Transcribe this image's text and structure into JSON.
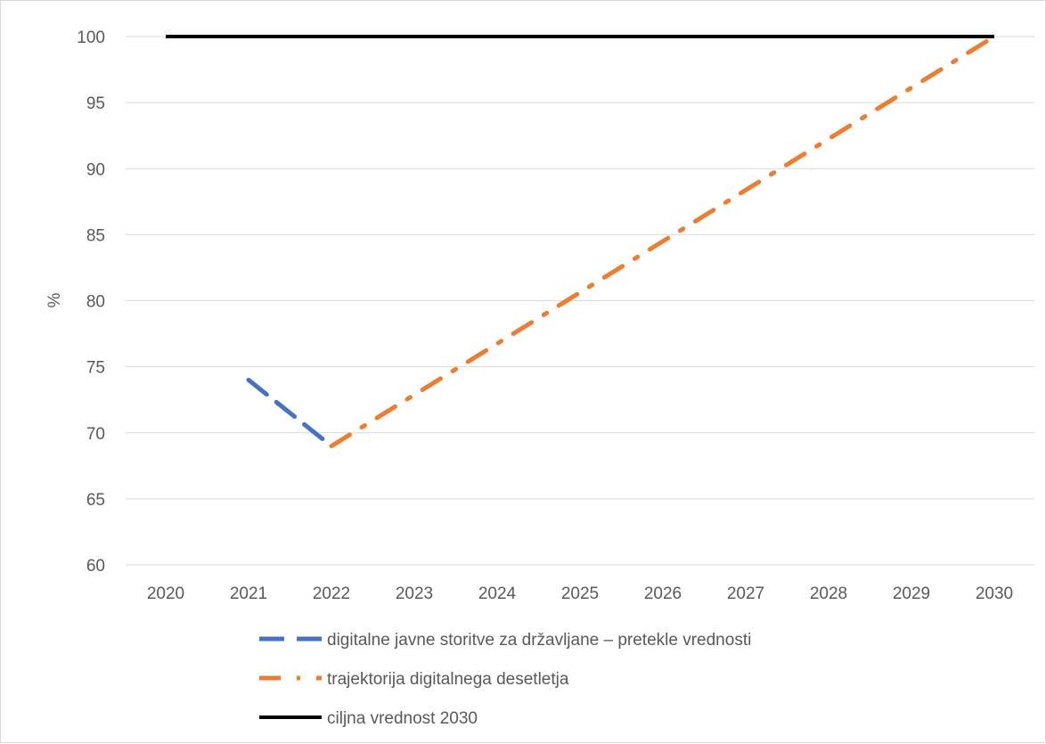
{
  "chart_data": {
    "type": "line",
    "title": "",
    "xlabel": "",
    "ylabel": "%",
    "ylim": [
      60,
      100
    ],
    "yticks": [
      "60",
      "65",
      "70",
      "75",
      "80",
      "85",
      "90",
      "95",
      "100"
    ],
    "ytick_values": [
      60,
      65,
      70,
      75,
      80,
      85,
      90,
      95,
      100
    ],
    "categories": [
      "2020",
      "2021",
      "2022",
      "2023",
      "2024",
      "2025",
      "2026",
      "2027",
      "2028",
      "2029",
      "2030"
    ],
    "grid": true,
    "legend_position": "bottom",
    "series": [
      {
        "name": "digitalne javne storitve za državljane – pretekle vrednosti",
        "color": "#4472c4",
        "style": "dash",
        "points": [
          [
            2021,
            74
          ],
          [
            2022,
            69
          ]
        ]
      },
      {
        "name": "trajektorija digitalnega desetletja",
        "color": "#ed7d31",
        "style": "dash-dot",
        "points": [
          [
            2022,
            69
          ],
          [
            2030,
            100
          ]
        ]
      },
      {
        "name": "ciljna vrednost 2030",
        "color": "#000000",
        "style": "solid",
        "points": [
          [
            2020,
            100
          ],
          [
            2030,
            100
          ]
        ]
      }
    ]
  }
}
